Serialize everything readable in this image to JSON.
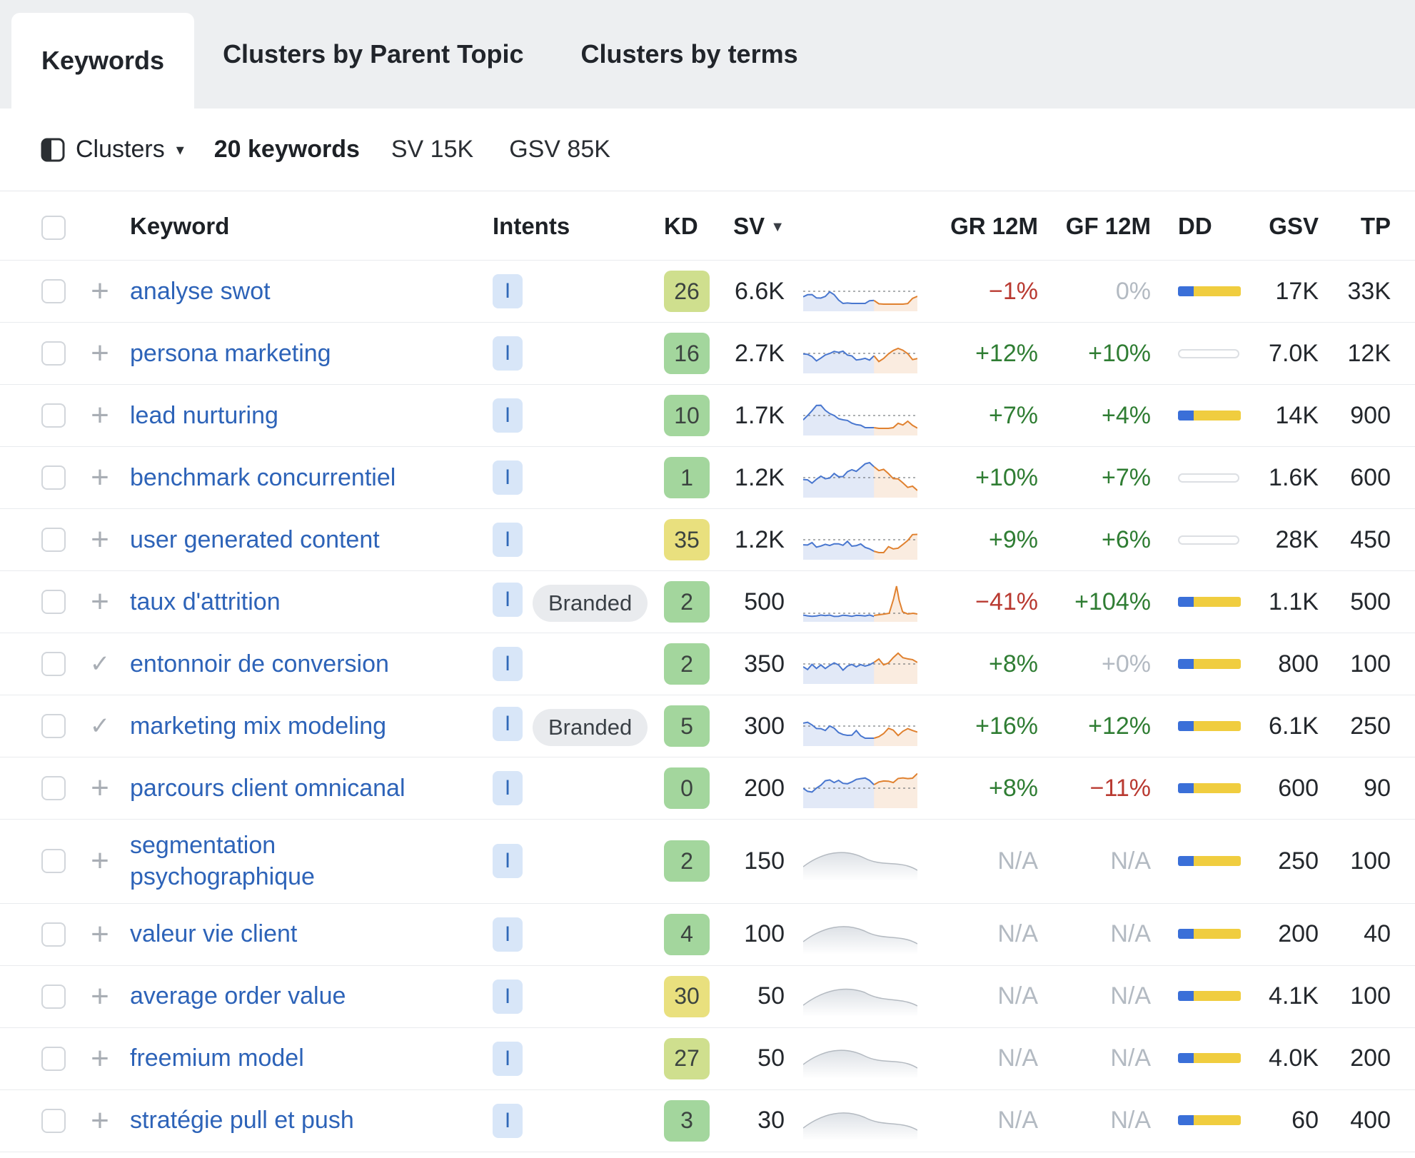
{
  "tabs": [
    {
      "label": "Keywords",
      "active": true
    },
    {
      "label": "Clusters by Parent Topic",
      "active": false
    },
    {
      "label": "Clusters by terms",
      "active": false
    }
  ],
  "toolbar": {
    "view_selector": "Clusters",
    "keyword_count": "20 keywords",
    "sv_summary": "SV 15K",
    "gsv_summary": "GSV 85K"
  },
  "table": {
    "headers": {
      "keyword": "Keyword",
      "intents": "Intents",
      "kd": "KD",
      "sv": "SV",
      "gr": "GR 12M",
      "gf": "GF 12M",
      "dd": "DD",
      "gsv": "GSV",
      "tp": "TP"
    },
    "sorted_by": "SV",
    "branded_label": "Branded",
    "rows": [
      {
        "keyword": "analyse swot",
        "action": "add",
        "intents": [
          "I"
        ],
        "branded": false,
        "kd": 26,
        "sv": "6.6K",
        "trend": "mixed",
        "gr": "−1%",
        "gf": "0%",
        "dd": "filled",
        "gsv": "17K",
        "tp": "33K"
      },
      {
        "keyword": "persona marketing",
        "action": "add",
        "intents": [
          "I"
        ],
        "branded": false,
        "kd": 16,
        "sv": "2.7K",
        "trend": "mixed",
        "gr": "+12%",
        "gf": "+10%",
        "dd": "empty",
        "gsv": "7.0K",
        "tp": "12K"
      },
      {
        "keyword": "lead nurturing",
        "action": "add",
        "intents": [
          "I"
        ],
        "branded": false,
        "kd": 10,
        "sv": "1.7K",
        "trend": "mixed",
        "gr": "+7%",
        "gf": "+4%",
        "dd": "filled",
        "gsv": "14K",
        "tp": "900"
      },
      {
        "keyword": "benchmark concurrentiel",
        "action": "add",
        "intents": [
          "I"
        ],
        "branded": false,
        "kd": 1,
        "sv": "1.2K",
        "trend": "mixed",
        "gr": "+10%",
        "gf": "+7%",
        "dd": "empty",
        "gsv": "1.6K",
        "tp": "600"
      },
      {
        "keyword": "user generated content",
        "action": "add",
        "intents": [
          "I"
        ],
        "branded": false,
        "kd": 35,
        "sv": "1.2K",
        "trend": "mixed",
        "gr": "+9%",
        "gf": "+6%",
        "dd": "empty",
        "gsv": "28K",
        "tp": "450"
      },
      {
        "keyword": "taux d'attrition",
        "action": "add",
        "intents": [
          "I"
        ],
        "branded": true,
        "kd": 2,
        "sv": "500",
        "trend": "spike",
        "gr": "−41%",
        "gf": "+104%",
        "dd": "filled",
        "gsv": "1.1K",
        "tp": "500"
      },
      {
        "keyword": "entonnoir de conversion",
        "action": "added",
        "intents": [
          "I"
        ],
        "branded": false,
        "kd": 2,
        "sv": "350",
        "trend": "mixed",
        "gr": "+8%",
        "gf": "+0%",
        "dd": "filled",
        "gsv": "800",
        "tp": "100"
      },
      {
        "keyword": "marketing mix modeling",
        "action": "added",
        "intents": [
          "I"
        ],
        "branded": true,
        "kd": 5,
        "sv": "300",
        "trend": "mixed",
        "gr": "+16%",
        "gf": "+12%",
        "dd": "filled",
        "gsv": "6.1K",
        "tp": "250"
      },
      {
        "keyword": "parcours client omnicanal",
        "action": "add",
        "intents": [
          "I"
        ],
        "branded": false,
        "kd": 0,
        "sv": "200",
        "trend": "mixed",
        "gr": "+8%",
        "gf": "−11%",
        "dd": "filled",
        "gsv": "600",
        "tp": "90"
      },
      {
        "keyword": "segmentation psychographique",
        "action": "add",
        "intents": [
          "I"
        ],
        "branded": false,
        "kd": 2,
        "sv": "150",
        "trend": "gray",
        "gr": "N/A",
        "gf": "N/A",
        "dd": "filled",
        "gsv": "250",
        "tp": "100"
      },
      {
        "keyword": "valeur vie client",
        "action": "add",
        "intents": [
          "I"
        ],
        "branded": false,
        "kd": 4,
        "sv": "100",
        "trend": "gray",
        "gr": "N/A",
        "gf": "N/A",
        "dd": "filled",
        "gsv": "200",
        "tp": "40"
      },
      {
        "keyword": "average order value",
        "action": "add",
        "intents": [
          "I"
        ],
        "branded": false,
        "kd": 30,
        "sv": "50",
        "trend": "gray",
        "gr": "N/A",
        "gf": "N/A",
        "dd": "filled",
        "gsv": "4.1K",
        "tp": "100"
      },
      {
        "keyword": "freemium model",
        "action": "add",
        "intents": [
          "I"
        ],
        "branded": false,
        "kd": 27,
        "sv": "50",
        "trend": "gray",
        "gr": "N/A",
        "gf": "N/A",
        "dd": "filled",
        "gsv": "4.0K",
        "tp": "200"
      },
      {
        "keyword": "stratégie pull et push",
        "action": "add",
        "intents": [
          "I"
        ],
        "branded": false,
        "kd": 3,
        "sv": "30",
        "trend": "gray",
        "gr": "N/A",
        "gf": "N/A",
        "dd": "filled",
        "gsv": "60",
        "tp": "400"
      }
    ]
  },
  "colors": {
    "link": "#2d63b8",
    "tab_bar_bg": "#edeff1",
    "kd_green": "#a3d69d",
    "kd_lime": "#cfdf8e",
    "kd_yellow": "#e9e07e",
    "positive": "#2f7d33",
    "negative": "#b93a31",
    "neutral": "#b3bac2",
    "intent_bg": "#d8e6f8",
    "intent_text": "#3069b8",
    "dd_blue": "#3a6fd8",
    "dd_yellow": "#f0cd3f",
    "spark_blue": "#4977cf",
    "spark_orange": "#e0812f"
  }
}
